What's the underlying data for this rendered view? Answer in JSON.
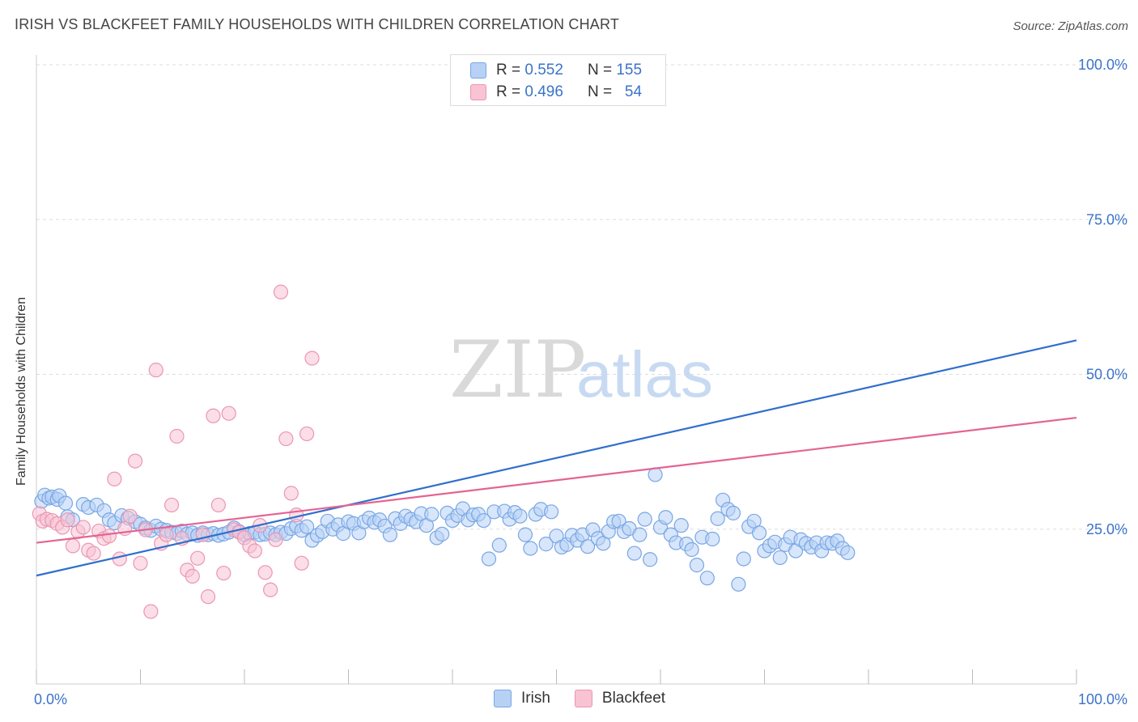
{
  "title": "IRISH VS BLACKFEET FAMILY HOUSEHOLDS WITH CHILDREN CORRELATION CHART",
  "source": "Source: ZipAtlas.com",
  "watermark": {
    "zip": "ZIP",
    "atlas": "atlas"
  },
  "legend": {
    "irish": {
      "r_label": "R =",
      "r": "0.552",
      "n_label": "N =",
      "n": "155"
    },
    "blackfeet": {
      "r_label": "R =",
      "r": "0.496",
      "n_label": "N =",
      "n": "54"
    }
  },
  "colors": {
    "irish_fill": "#b7d1f5",
    "irish_stroke": "#7aa6e4",
    "irish_line": "#2f6fcd",
    "blackfeet_fill": "#f8c3d3",
    "blackfeet_stroke": "#eb96b2",
    "blackfeet_line": "#e36494",
    "tick_label": "#3b73c9",
    "grid": "#dddddd"
  },
  "chart_data": {
    "type": "scatter",
    "title": "IRISH VS BLACKFEET FAMILY HOUSEHOLDS WITH CHILDREN CORRELATION CHART",
    "xlabel": "",
    "ylabel": "Family Households with Children",
    "xlim": [
      0,
      100
    ],
    "ylim": [
      0,
      100
    ],
    "x_tick_labels": [
      "0.0%",
      "100.0%"
    ],
    "y_tick_labels": [
      "25.0%",
      "50.0%",
      "75.0%",
      "100.0%"
    ],
    "y_ticks": [
      25,
      50,
      75,
      100
    ],
    "grid": "horizontal dashed",
    "legend_position": "bottom-center",
    "series": [
      {
        "name": "Irish",
        "r": 0.552,
        "n": 155,
        "trend": {
          "x": [
            0,
            100
          ],
          "y": [
            17.5,
            55.5
          ]
        },
        "points": [
          [
            0.5,
            29.5
          ],
          [
            0.8,
            30.5
          ],
          [
            1.2,
            30
          ],
          [
            1.5,
            30.2
          ],
          [
            2,
            29.8
          ],
          [
            2.2,
            30.4
          ],
          [
            2.8,
            29.2
          ],
          [
            3,
            27
          ],
          [
            3.5,
            26.5
          ],
          [
            4.5,
            29
          ],
          [
            5,
            28.5
          ],
          [
            5.8,
            28.9
          ],
          [
            6.5,
            28
          ],
          [
            7,
            26.5
          ],
          [
            7.5,
            26
          ],
          [
            8.2,
            27.2
          ],
          [
            8.8,
            26.8
          ],
          [
            9.5,
            26.2
          ],
          [
            10,
            25.8
          ],
          [
            10.5,
            25.2
          ],
          [
            11,
            24.8
          ],
          [
            11.5,
            25.5
          ],
          [
            12,
            25
          ],
          [
            12.5,
            24.8
          ],
          [
            13,
            24.5
          ],
          [
            13.5,
            24.3
          ],
          [
            14,
            24.7
          ],
          [
            14.5,
            24.2
          ],
          [
            15,
            24.4
          ],
          [
            15.5,
            24
          ],
          [
            16,
            24.4
          ],
          [
            16.5,
            24.1
          ],
          [
            17,
            24.3
          ],
          [
            17.5,
            24
          ],
          [
            18,
            24.2
          ],
          [
            18.5,
            24.5
          ],
          [
            19,
            25.2
          ],
          [
            19.5,
            24.6
          ],
          [
            20,
            24.1
          ],
          [
            20.5,
            24.3
          ],
          [
            21,
            24.5
          ],
          [
            21.5,
            24.1
          ],
          [
            22,
            24.2
          ],
          [
            22.5,
            24.4
          ],
          [
            23,
            24.1
          ],
          [
            23.5,
            24.5
          ],
          [
            24,
            24.3
          ],
          [
            24.5,
            25.1
          ],
          [
            25,
            25.5
          ],
          [
            25.5,
            24.8
          ],
          [
            26,
            25.4
          ],
          [
            26.5,
            23.2
          ],
          [
            27,
            24
          ],
          [
            27.5,
            24.6
          ],
          [
            28,
            26.3
          ],
          [
            28.5,
            25
          ],
          [
            29,
            25.7
          ],
          [
            29.5,
            24.3
          ],
          [
            30,
            26.2
          ],
          [
            30.5,
            25.9
          ],
          [
            31,
            24.4
          ],
          [
            31.5,
            26.2
          ],
          [
            32,
            26.8
          ],
          [
            32.5,
            26.1
          ],
          [
            33,
            26.5
          ],
          [
            33.5,
            25.5
          ],
          [
            34,
            24.1
          ],
          [
            34.5,
            26.7
          ],
          [
            35,
            25.9
          ],
          [
            35.5,
            27.1
          ],
          [
            36,
            26.6
          ],
          [
            36.5,
            26.2
          ],
          [
            37,
            27.5
          ],
          [
            37.5,
            25.6
          ],
          [
            38,
            27.4
          ],
          [
            38.5,
            23.6
          ],
          [
            39,
            24.2
          ],
          [
            39.5,
            27.6
          ],
          [
            40,
            26.4
          ],
          [
            40.5,
            27.2
          ],
          [
            41,
            28.3
          ],
          [
            41.5,
            26.5
          ],
          [
            42,
            27.3
          ],
          [
            42.5,
            27.4
          ],
          [
            43,
            26.4
          ],
          [
            43.5,
            20.2
          ],
          [
            44,
            27.8
          ],
          [
            44.5,
            22.4
          ],
          [
            45,
            27.9
          ],
          [
            45.5,
            26.6
          ],
          [
            46,
            27.7
          ],
          [
            46.5,
            27.1
          ],
          [
            47,
            24.1
          ],
          [
            47.5,
            21.9
          ],
          [
            48,
            27.4
          ],
          [
            48.5,
            28.2
          ],
          [
            49,
            22.6
          ],
          [
            49.5,
            27.8
          ],
          [
            50,
            23.9
          ],
          [
            50.5,
            22.1
          ],
          [
            51,
            22.5
          ],
          [
            51.5,
            24
          ],
          [
            52,
            23.2
          ],
          [
            52.5,
            24.1
          ],
          [
            53,
            22.2
          ],
          [
            53.5,
            24.9
          ],
          [
            54,
            23.5
          ],
          [
            54.5,
            22.7
          ],
          [
            55,
            24.6
          ],
          [
            55.5,
            26.2
          ],
          [
            56,
            26.3
          ],
          [
            56.5,
            24.6
          ],
          [
            57,
            25.1
          ],
          [
            57.5,
            21.1
          ],
          [
            58,
            24.1
          ],
          [
            58.5,
            26.6
          ],
          [
            59,
            20.1
          ],
          [
            59.5,
            33.8
          ],
          [
            60,
            25.3
          ],
          [
            60.5,
            26.9
          ],
          [
            61,
            24.1
          ],
          [
            61.5,
            22.8
          ],
          [
            62,
            25.6
          ],
          [
            62.5,
            22.6
          ],
          [
            63,
            21.7
          ],
          [
            63.5,
            19.2
          ],
          [
            64,
            23.7
          ],
          [
            64.5,
            17.1
          ],
          [
            65,
            23.4
          ],
          [
            65.5,
            26.7
          ],
          [
            66,
            29.7
          ],
          [
            66.5,
            28.2
          ],
          [
            67,
            27.6
          ],
          [
            67.5,
            16.1
          ],
          [
            68,
            20.2
          ],
          [
            68.5,
            25.4
          ],
          [
            69,
            26.3
          ],
          [
            69.5,
            24.4
          ],
          [
            70,
            21.5
          ],
          [
            70.5,
            22.3
          ],
          [
            71,
            22.9
          ],
          [
            71.5,
            20.4
          ],
          [
            72,
            22.5
          ],
          [
            72.5,
            23.7
          ],
          [
            73,
            21.5
          ],
          [
            73.5,
            23.3
          ],
          [
            74,
            22.7
          ],
          [
            74.5,
            22.1
          ],
          [
            75,
            22.8
          ],
          [
            75.5,
            21.5
          ],
          [
            76,
            22.8
          ],
          [
            76.5,
            22.7
          ],
          [
            77,
            23.1
          ],
          [
            77.5,
            21.9
          ],
          [
            78,
            21.2
          ]
        ]
      },
      {
        "name": "Blackfeet",
        "r": 0.496,
        "n": 54,
        "trend": {
          "x": [
            0,
            100
          ],
          "y": [
            22.8,
            43
          ]
        },
        "points": [
          [
            0.3,
            27.5
          ],
          [
            0.6,
            26.3
          ],
          [
            1.0,
            26.6
          ],
          [
            1.5,
            26.4
          ],
          [
            2.0,
            25.9
          ],
          [
            2.5,
            25.3
          ],
          [
            3.0,
            26.5
          ],
          [
            3.5,
            22.3
          ],
          [
            4.0,
            24.6
          ],
          [
            4.5,
            25.3
          ],
          [
            5.0,
            21.6
          ],
          [
            5.5,
            21.1
          ],
          [
            6.0,
            24.7
          ],
          [
            6.5,
            23.5
          ],
          [
            7.0,
            23.9
          ],
          [
            7.5,
            33.1
          ],
          [
            8.0,
            20.2
          ],
          [
            8.5,
            25.1
          ],
          [
            9.0,
            27.1
          ],
          [
            9.5,
            36.0
          ],
          [
            10.0,
            19.5
          ],
          [
            10.5,
            24.9
          ],
          [
            11.0,
            11.7
          ],
          [
            11.5,
            50.7
          ],
          [
            12.0,
            22.7
          ],
          [
            12.5,
            24.1
          ],
          [
            13.0,
            28.9
          ],
          [
            13.5,
            40.0
          ],
          [
            14.0,
            23.5
          ],
          [
            14.5,
            18.4
          ],
          [
            15.0,
            17.4
          ],
          [
            15.5,
            20.3
          ],
          [
            16.0,
            24.1
          ],
          [
            16.5,
            14.1
          ],
          [
            17.0,
            43.3
          ],
          [
            17.5,
            28.9
          ],
          [
            18.0,
            17.9
          ],
          [
            18.5,
            43.7
          ],
          [
            19.0,
            24.9
          ],
          [
            19.5,
            24.5
          ],
          [
            20.0,
            23.6
          ],
          [
            20.5,
            22.3
          ],
          [
            21.0,
            21.5
          ],
          [
            21.5,
            25.6
          ],
          [
            22.0,
            18.0
          ],
          [
            22.5,
            15.2
          ],
          [
            23.0,
            23.3
          ],
          [
            23.5,
            63.3
          ],
          [
            24.0,
            39.6
          ],
          [
            24.5,
            30.8
          ],
          [
            25.0,
            27.3
          ],
          [
            25.5,
            19.5
          ],
          [
            26.0,
            40.4
          ],
          [
            26.5,
            52.6
          ]
        ]
      }
    ]
  }
}
